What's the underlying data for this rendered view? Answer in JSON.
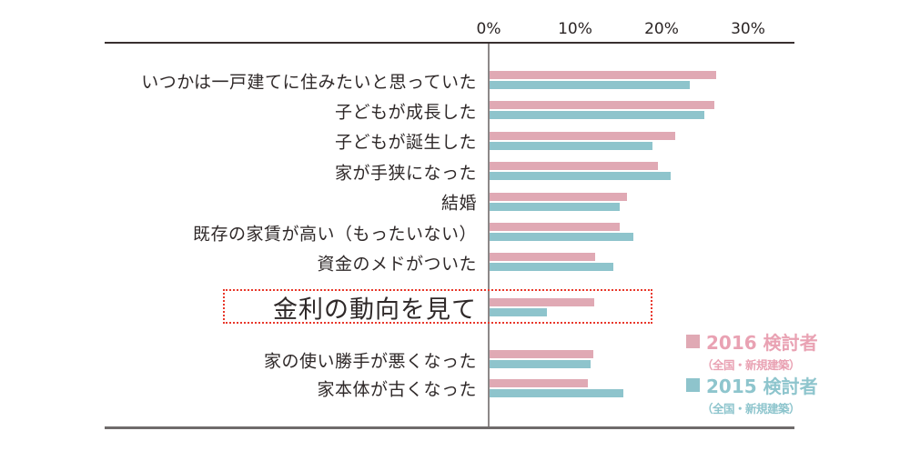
{
  "chart_data": {
    "type": "bar",
    "orientation": "horizontal",
    "title": "",
    "categories": [
      "いつかは一戸建てに住みたいと思っていた",
      "子どもが成長した",
      "子どもが誕生した",
      "家が手狭になった",
      "結婚",
      "既存の家賃が高い（もったいない）",
      "資金のメドがついた",
      "金利の動向を見て",
      "家の使い勝手が悪くなった",
      "家本体が古くなった"
    ],
    "series": [
      {
        "name": "2016 検討者",
        "subtitle": "（全国・新規建築）",
        "color": "#e0a9b4",
        "values": [
          26.2,
          26.0,
          21.5,
          19.5,
          15.9,
          15.1,
          12.2,
          12.1,
          12.0,
          11.4
        ]
      },
      {
        "name": "2015 検討者",
        "subtitle": "（全国・新規建築）",
        "color": "#8ec4cc",
        "values": [
          23.2,
          24.8,
          18.8,
          20.9,
          15.1,
          16.6,
          14.3,
          6.6,
          11.7,
          15.5
        ]
      }
    ],
    "x_axis": {
      "ticks": [
        "0%",
        "10%",
        "20%",
        "30%"
      ],
      "tick_values": [
        0,
        10,
        20,
        30
      ],
      "min": 0,
      "max": 35.4,
      "unit": "%"
    },
    "grid": false,
    "legend_position": "bottom-right",
    "highlight": {
      "category_index": 7,
      "category": "金利の動向を見て",
      "style": "red-dotted-box",
      "box_color": "#e8382b"
    }
  }
}
